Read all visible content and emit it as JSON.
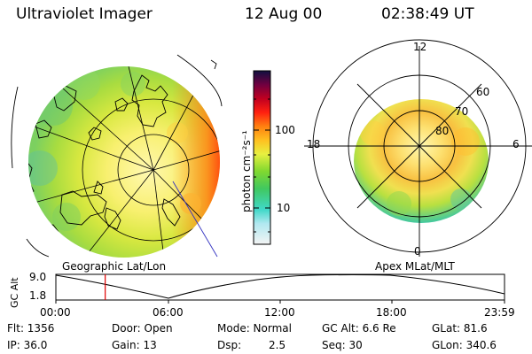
{
  "header": {
    "title": "Ultraviolet Imager",
    "date": "12 Aug 00",
    "time": "02:38:49 UT"
  },
  "colorbar": {
    "unit_label": "photon cm⁻²s⁻¹",
    "tick_100": "100",
    "tick_10": "10"
  },
  "geo_panel": {
    "caption": "Geographic Lat/Lon"
  },
  "polar_panel": {
    "caption": "Apex MLat/MLT",
    "mlt_top": "12",
    "mlt_left": "18",
    "mlt_right": "6",
    "mlt_bottom": "0",
    "lat_60": "60",
    "lat_70": "70",
    "lat_80": "80"
  },
  "altitude_plot": {
    "axis_label": "GC Alt",
    "y_top": "9.0",
    "y_bottom": "1.8",
    "x_ticks": [
      "00:00",
      "06:00",
      "12:00",
      "18:00",
      "23:59"
    ],
    "current_time_fraction": 0.11
  },
  "info": {
    "flt": "Flt: 1356",
    "ip": "IP: 36.0",
    "door": "Door: Open",
    "gain": "Gain: 13",
    "mode": "Mode: Normal",
    "dsp_label": "Dsp:",
    "dsp_value": "2.5",
    "gc_alt": "GC Alt: 6.6 Re",
    "seq": "Seq: 30",
    "glat": "GLat:  81.6",
    "glon": "GLon: 340.6"
  },
  "colors": {
    "current_time_marker": "#e00000",
    "lines": "#000000",
    "nav_line": "#3030c0"
  }
}
